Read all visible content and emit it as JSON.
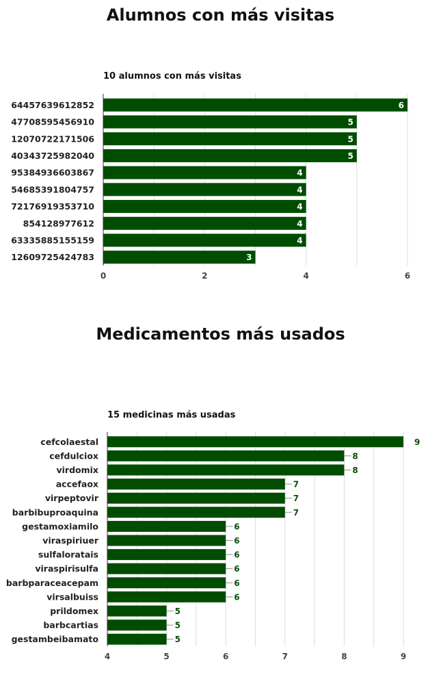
{
  "sections": {
    "visits_title": "Alumnos con más visitas",
    "meds_title": "Medicamentos más usados"
  },
  "colors": {
    "bar": "#004d00",
    "label_outside": "#0b4d0b"
  },
  "chart_data": [
    {
      "type": "bar",
      "orientation": "horizontal",
      "title": "10 alumnos con más visitas",
      "categories": [
        "64457639612852",
        "47708595456910",
        "12070722171506",
        "40343725982040",
        "95384936603867",
        "54685391804757",
        "72176919353710",
        "854128977612",
        "63335885155159",
        "12609725424783"
      ],
      "values": [
        6,
        5,
        5,
        5,
        4,
        4,
        4,
        4,
        4,
        3
      ],
      "xlim": [
        0,
        6
      ],
      "ticks": [
        0,
        2,
        4,
        6
      ],
      "grid": true,
      "value_labels": "inside"
    },
    {
      "type": "bar",
      "orientation": "horizontal",
      "title": "15 medicinas más usadas",
      "categories": [
        "cefcolaestal",
        "cefdulciox",
        "virdomix",
        "accefaox",
        "virpeptovir",
        "barbibuproaquina",
        "gestamoxiamilo",
        "viraspiriuer",
        "sulfaloratais",
        "viraspirisulfa",
        "barbparaceacepam",
        "virsalbuiss",
        "prildomex",
        "barbcartias",
        "gestambeibamato"
      ],
      "values": [
        9,
        8,
        8,
        7,
        7,
        7,
        6,
        6,
        6,
        6,
        6,
        6,
        5,
        5,
        5
      ],
      "xlim": [
        4,
        9
      ],
      "ticks": [
        4,
        5,
        6,
        7,
        8,
        9
      ],
      "grid": true,
      "value_labels": "outside"
    }
  ]
}
